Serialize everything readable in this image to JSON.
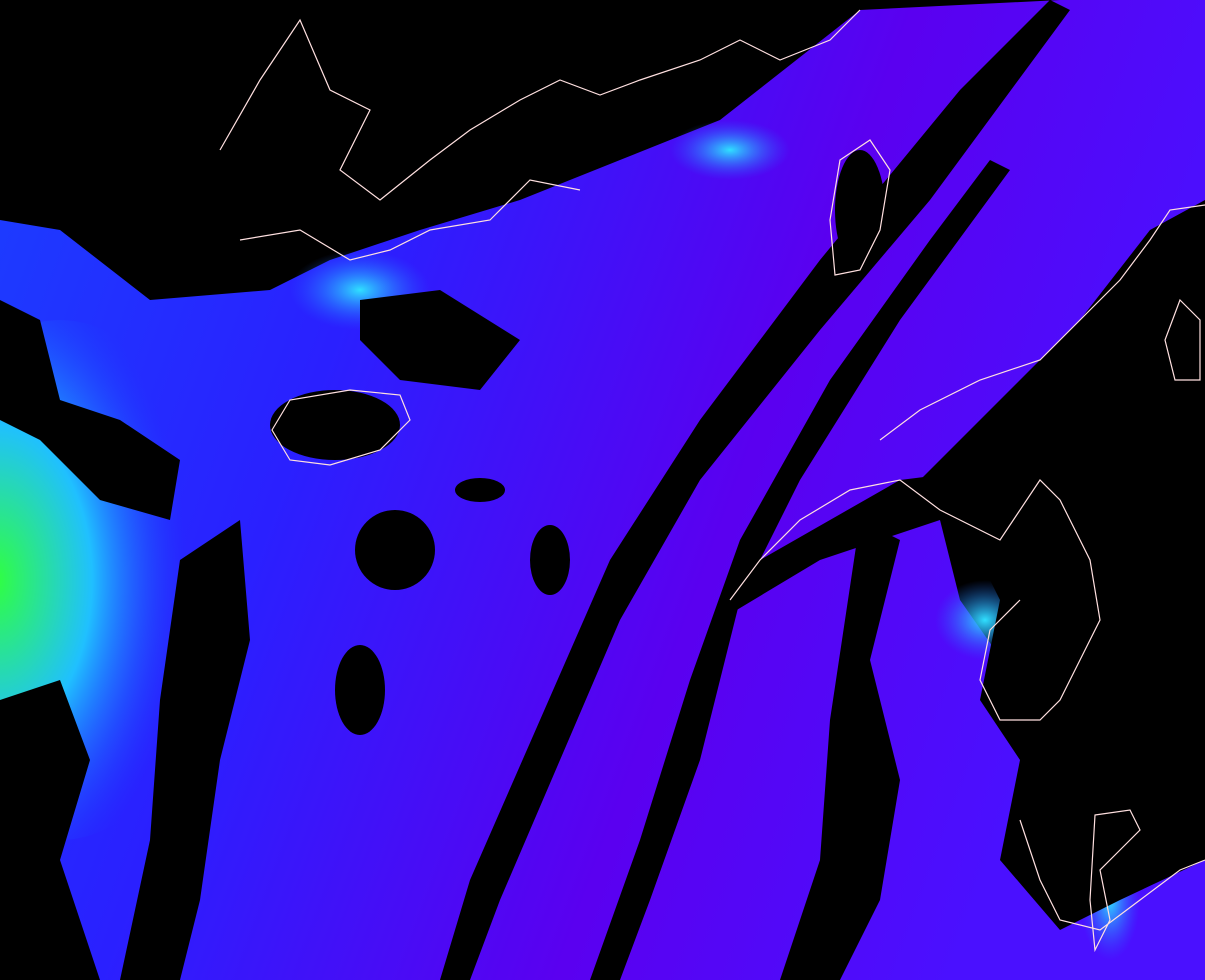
{
  "map": {
    "colors": {
      "background": "#000000",
      "open_ocean": "#5a00f0",
      "ocean_blue": "#1a2cff",
      "coastal_cyan": "#20c8ff",
      "bloom_green": "#30ff60",
      "bloom_yellow": "#e0ff20",
      "bloom_red": "#ff2a10",
      "coastline": "#ffe0e0"
    },
    "layers": [
      "ocean-color",
      "cloud-mask",
      "coastline"
    ]
  }
}
